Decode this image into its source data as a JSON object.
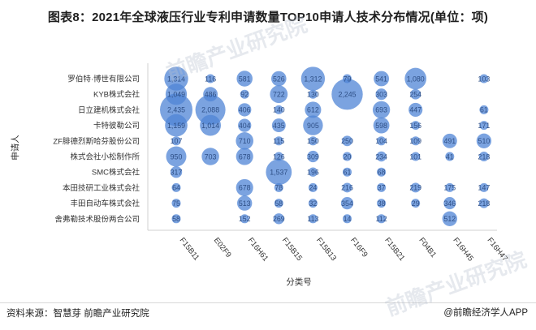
{
  "title": "图表8：2021年全球液压行业专利申请数量TOP10申请人技术分布情况(单位：项)",
  "footer": {
    "source": "资料来源：智慧芽 前瞻产业研究院",
    "brand": "@前瞻经济学人APP"
  },
  "watermark": "前瞻产业研究院",
  "colors": {
    "bubble": "#4f84d6",
    "bubble_alpha": 0.75,
    "label": "#2e4f86",
    "axis": "#d0d0d0"
  },
  "chart_data": {
    "type": "bubble",
    "xlabel": "分类号",
    "ylabel": "申请人",
    "categories_x": [
      "F15B11",
      "E02F9",
      "F16H61",
      "F15B15",
      "F15B13",
      "F16F9",
      "F15B21",
      "F04B1",
      "F16H45",
      "F16H47"
    ],
    "categories_y": [
      "罗伯特·博世有限公司",
      "KYB株式会社",
      "日立建机株式会社",
      "卡特彼勒公司",
      "ZF腓德烈斯哈芬股份公司",
      "株式会社小松制作所",
      "SMC株式会社",
      "本田技研工业株式会社",
      "丰田自动车株式会社",
      "舍弗勒技术股份两合公司"
    ],
    "values": [
      [
        1314,
        116,
        581,
        526,
        1312,
        79,
        541,
        1080,
        null,
        103
      ],
      [
        1049,
        486,
        92,
        722,
        130,
        2245,
        303,
        254,
        null,
        null
      ],
      [
        2435,
        2088,
        406,
        140,
        612,
        null,
        693,
        447,
        null,
        61
      ],
      [
        1159,
        1014,
        404,
        435,
        905,
        null,
        598,
        156,
        null,
        171
      ],
      [
        107,
        null,
        710,
        115,
        150,
        250,
        104,
        109,
        491,
        510
      ],
      [
        950,
        703,
        678,
        126,
        309,
        20,
        234,
        101,
        41,
        218
      ],
      [
        317,
        null,
        null,
        1537,
        196,
        61,
        68,
        null,
        null,
        null
      ],
      [
        64,
        null,
        678,
        78,
        24,
        216,
        37,
        219,
        175,
        147
      ],
      [
        75,
        null,
        513,
        58,
        32,
        354,
        38,
        29,
        346,
        218
      ],
      [
        58,
        null,
        152,
        269,
        113,
        14,
        112,
        null,
        512,
        null
      ]
    ]
  }
}
